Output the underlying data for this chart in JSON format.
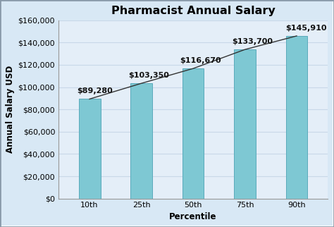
{
  "title": "Pharmacist Annual Salary",
  "xlabel": "Percentile",
  "ylabel": "Annual Salary USD",
  "categories": [
    "10th",
    "25th",
    "50th",
    "75th",
    "90th"
  ],
  "values": [
    89280,
    103350,
    116670,
    133700,
    145910
  ],
  "bar_color": "#7EC8D3",
  "bar_edge_color": "#5AAABB",
  "line_color": "#333333",
  "background_color": "#D8E8F5",
  "plot_bg_color": "#E4EEF8",
  "border_color": "#8899AA",
  "grid_color": "#C8D8E8",
  "ylim": [
    0,
    160000
  ],
  "ytick_step": 20000,
  "annotations": [
    "$89,280",
    "$103,350",
    "$116,670",
    "$133,700",
    "$145,910"
  ],
  "title_fontsize": 11.5,
  "label_fontsize": 8.5,
  "tick_fontsize": 8,
  "annotation_fontsize": 8
}
